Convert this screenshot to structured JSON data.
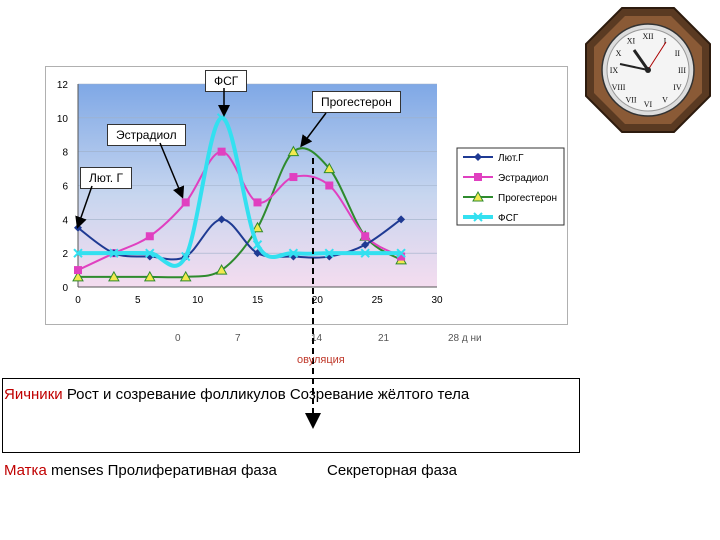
{
  "chart_data": {
    "type": "line",
    "x": [
      0,
      3,
      6,
      9,
      12,
      15,
      18,
      21,
      24,
      27
    ],
    "xlim": [
      0,
      30
    ],
    "ylim": [
      0,
      12
    ],
    "xticks": [
      "0",
      "5",
      "10",
      "15",
      "20",
      "25",
      "30"
    ],
    "yticks": [
      "0",
      "2",
      "4",
      "6",
      "8",
      "10",
      "12"
    ],
    "grid": true,
    "legend_position": "right",
    "series": [
      {
        "name": "Лют.Г",
        "color": "#1f3a93",
        "marker": "diamond",
        "values": [
          3.5,
          2.0,
          1.8,
          1.8,
          4.0,
          2.0,
          1.8,
          1.8,
          2.5,
          4.0
        ]
      },
      {
        "name": "Эстрадиол",
        "color": "#e040c0",
        "marker": "square",
        "values": [
          1.0,
          2.0,
          3.0,
          5.0,
          8.0,
          5.0,
          6.5,
          6.0,
          3.0,
          1.8
        ]
      },
      {
        "name": "Прогестерон",
        "color": "#2e8b2e",
        "marker": "triangle",
        "values": [
          0.6,
          0.6,
          0.6,
          0.6,
          1.0,
          3.5,
          8.0,
          7.0,
          3.0,
          1.6
        ]
      },
      {
        "name": "ФСГ",
        "color": "#33e0f0",
        "marker": "x",
        "values": [
          2.0,
          2.0,
          2.0,
          1.8,
          10.0,
          2.5,
          2.0,
          2.0,
          2.0,
          2.0
        ]
      }
    ],
    "annotations": [
      "ФСГ",
      "Прогестерон",
      "Эстрадиол",
      "Лют. Г"
    ],
    "day_axis": {
      "ticks": [
        "0",
        "7",
        "14",
        "21"
      ],
      "end_label": "28 д ни"
    },
    "ovulation_label": "овуляция"
  },
  "rows": {
    "ovary_label": "Яичники",
    "ovary_text": "Рост и созревание фолликулов  Созревание жёлтого тела",
    "uterus_label": "Матка",
    "uterus_text": "menses Пролиферативная фаза",
    "uterus_phase2": "Секреторная фаза"
  },
  "clock": {
    "numerals": [
      "XII",
      "I",
      "II",
      "III",
      "IV",
      "V",
      "VI",
      "VII",
      "VIII",
      "IX",
      "X",
      "XI"
    ]
  }
}
